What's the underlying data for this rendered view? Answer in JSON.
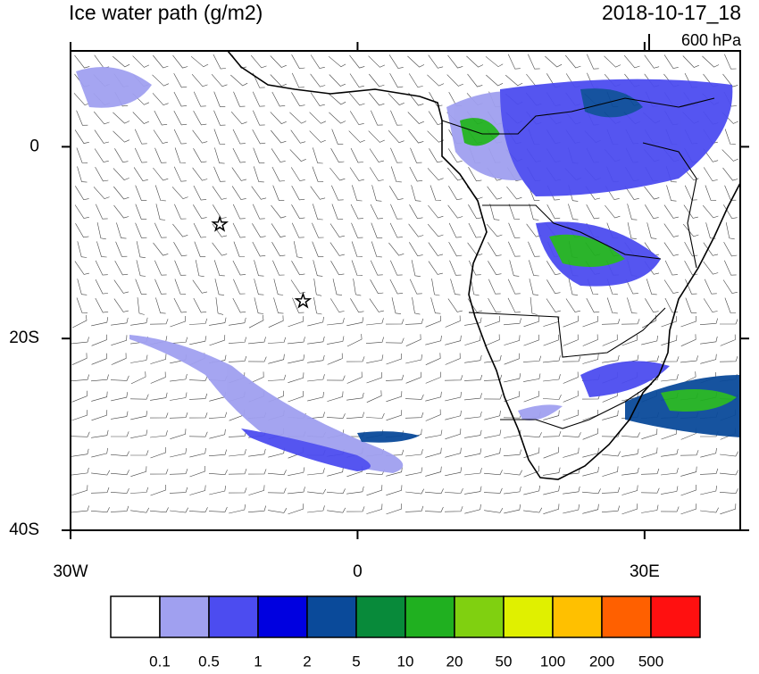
{
  "header": {
    "title": "Ice water path (g/m2)",
    "time": "2018-10-17_18",
    "level": "600 hPa"
  },
  "map": {
    "xlim": [
      -30,
      40
    ],
    "ylim": [
      -40,
      10
    ],
    "xticks": [
      {
        "value": -30,
        "label": "30W"
      },
      0,
      {
        "value": 30,
        "label": "30E"
      }
    ],
    "yticks": [
      0,
      {
        "value": -20,
        "label": "20S"
      },
      {
        "value": -40,
        "label": "40S"
      }
    ],
    "markers": [
      {
        "lon": -14.4,
        "lat": -8.1
      },
      {
        "lon": -5.7,
        "lat": -16.1
      }
    ]
  },
  "colorbar": {
    "colors": [
      "#ffffff",
      "#a0a0f0",
      "#4c4cf0",
      "#0000e0",
      "#0a4a9a",
      "#088a3a",
      "#20b020",
      "#80d010",
      "#e0f000",
      "#ffc000",
      "#ff6000",
      "#ff1010"
    ],
    "levels": [
      0.1,
      0.5,
      1,
      2,
      5,
      10,
      20,
      50,
      100,
      200,
      500
    ]
  }
}
